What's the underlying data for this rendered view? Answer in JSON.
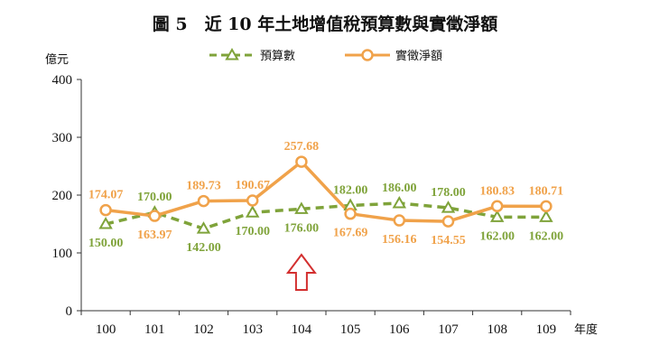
{
  "chart_data": {
    "type": "line",
    "title": "圖 5　近 10 年土地增值稅預算數與實徵淨額",
    "ylabel": "億元",
    "xlabel": "年度",
    "ylim": [
      0,
      400
    ],
    "yticks": [
      0,
      100,
      200,
      300,
      400
    ],
    "categories": [
      "100",
      "101",
      "102",
      "103",
      "104",
      "105",
      "106",
      "107",
      "108",
      "109"
    ],
    "grid": false,
    "legend": "top",
    "series": [
      {
        "name": "預算數",
        "values": [
          150.0,
          170.0,
          142.0,
          170.0,
          176.0,
          182.0,
          186.0,
          178.0,
          162.0,
          162.0
        ],
        "labels": [
          "150.00",
          "170.00",
          "142.00",
          "170.00",
          "176.00",
          "182.00",
          "186.00",
          "178.00",
          "162.00",
          "162.00"
        ],
        "color": "#7fa33a",
        "style": "dashed",
        "marker": "triangle"
      },
      {
        "name": "實徵淨額",
        "values": [
          174.07,
          163.97,
          189.73,
          190.67,
          257.68,
          167.69,
          156.16,
          154.55,
          180.83,
          180.71
        ],
        "labels": [
          "174.07",
          "163.97",
          "189.73",
          "190.67",
          "257.68",
          "167.69",
          "156.16",
          "154.55",
          "180.83",
          "180.71"
        ],
        "color": "#f0a24a",
        "style": "solid",
        "marker": "circle"
      }
    ],
    "annotation": {
      "type": "arrow-up",
      "category": "104",
      "color": "#d32f2f"
    }
  }
}
